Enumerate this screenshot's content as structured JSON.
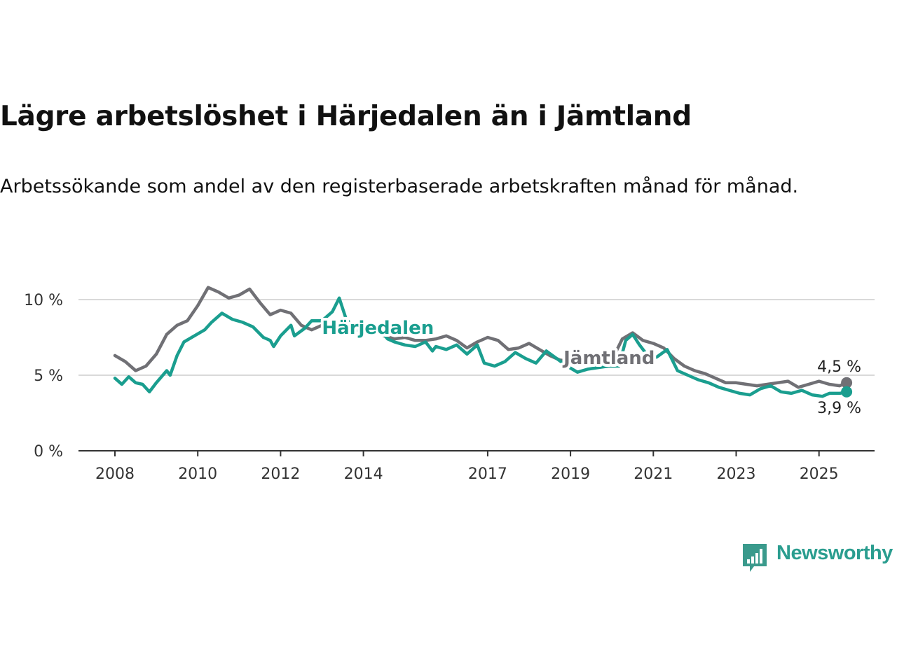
{
  "title": "Lägre arbetslöshet i Härjedalen än i Jämtland",
  "subtitle": "Arbetssökande som andel av den registerbaserade arbetskraften månad för månad.",
  "brand": {
    "name": "Newsworthy",
    "color": "#2a9d8f",
    "icon": "newsworthy-bar-chart-icon"
  },
  "chart_data": {
    "type": "line",
    "x_ticks": [
      "2008",
      "2010",
      "2012",
      "2014",
      "2017",
      "2019",
      "2021",
      "2023",
      "2025"
    ],
    "y_ticks": [
      "0 %",
      "5 %",
      "10 %"
    ],
    "xlim": [
      "2008-01",
      "2025-09"
    ],
    "ylim": [
      0,
      10
    ],
    "grid": true,
    "series": [
      {
        "name": "Jämtland",
        "color": "#707075",
        "end_label": "4,5 %",
        "points": [
          [
            "2008-01",
            6.3
          ],
          [
            "2008-04",
            5.9
          ],
          [
            "2008-07",
            5.3
          ],
          [
            "2008-10",
            5.6
          ],
          [
            "2009-01",
            6.4
          ],
          [
            "2009-04",
            7.7
          ],
          [
            "2009-07",
            8.3
          ],
          [
            "2009-10",
            8.6
          ],
          [
            "2010-01",
            9.6
          ],
          [
            "2010-04",
            10.8
          ],
          [
            "2010-07",
            10.5
          ],
          [
            "2010-10",
            10.1
          ],
          [
            "2011-01",
            10.3
          ],
          [
            "2011-04",
            10.7
          ],
          [
            "2011-07",
            9.8
          ],
          [
            "2011-10",
            9.0
          ],
          [
            "2012-01",
            9.3
          ],
          [
            "2012-04",
            9.1
          ],
          [
            "2012-07",
            8.3
          ],
          [
            "2012-10",
            8.0
          ],
          [
            "2013-01",
            8.3
          ],
          [
            "2013-04",
            8.6
          ],
          [
            "2013-07",
            8.2
          ],
          [
            "2013-10",
            7.9
          ],
          [
            "2014-01",
            8.1
          ],
          [
            "2014-04",
            7.9
          ],
          [
            "2014-07",
            7.6
          ],
          [
            "2014-10",
            7.4
          ],
          [
            "2015-01",
            7.5
          ],
          [
            "2015-04",
            7.3
          ],
          [
            "2015-07",
            7.3
          ],
          [
            "2015-10",
            7.4
          ],
          [
            "2016-01",
            7.6
          ],
          [
            "2016-04",
            7.3
          ],
          [
            "2016-07",
            6.8
          ],
          [
            "2016-10",
            7.2
          ],
          [
            "2017-01",
            7.5
          ],
          [
            "2017-04",
            7.3
          ],
          [
            "2017-07",
            6.7
          ],
          [
            "2017-10",
            6.8
          ],
          [
            "2018-01",
            7.1
          ],
          [
            "2018-04",
            6.7
          ],
          [
            "2018-07",
            6.3
          ],
          [
            "2018-10",
            6.0
          ],
          [
            "2019-01",
            5.9
          ],
          [
            "2019-04",
            5.8
          ],
          [
            "2019-07",
            5.7
          ],
          [
            "2019-10",
            5.9
          ],
          [
            "2020-01",
            6.0
          ],
          [
            "2020-04",
            7.4
          ],
          [
            "2020-07",
            7.8
          ],
          [
            "2020-10",
            7.3
          ],
          [
            "2021-01",
            7.1
          ],
          [
            "2021-04",
            6.8
          ],
          [
            "2021-07",
            6.1
          ],
          [
            "2021-10",
            5.6
          ],
          [
            "2022-01",
            5.3
          ],
          [
            "2022-04",
            5.1
          ],
          [
            "2022-07",
            4.8
          ],
          [
            "2022-10",
            4.5
          ],
          [
            "2023-01",
            4.5
          ],
          [
            "2023-04",
            4.4
          ],
          [
            "2023-07",
            4.3
          ],
          [
            "2023-10",
            4.4
          ],
          [
            "2024-01",
            4.5
          ],
          [
            "2024-04",
            4.6
          ],
          [
            "2024-07",
            4.2
          ],
          [
            "2024-10",
            4.4
          ],
          [
            "2025-01",
            4.6
          ],
          [
            "2025-04",
            4.4
          ],
          [
            "2025-07",
            4.3
          ],
          [
            "2025-09",
            4.5
          ]
        ]
      },
      {
        "name": "Härjedalen",
        "color": "#1a9e8f",
        "end_label": "3,9 %",
        "points": [
          [
            "2008-01",
            4.8
          ],
          [
            "2008-03",
            4.4
          ],
          [
            "2008-05",
            4.9
          ],
          [
            "2008-07",
            4.5
          ],
          [
            "2008-09",
            4.4
          ],
          [
            "2008-11",
            3.9
          ],
          [
            "2009-01",
            4.5
          ],
          [
            "2009-04",
            5.3
          ],
          [
            "2009-05",
            5.0
          ],
          [
            "2009-07",
            6.3
          ],
          [
            "2009-09",
            7.2
          ],
          [
            "2009-12",
            7.6
          ],
          [
            "2010-03",
            8.0
          ],
          [
            "2010-05",
            8.5
          ],
          [
            "2010-08",
            9.1
          ],
          [
            "2010-11",
            8.7
          ],
          [
            "2011-02",
            8.5
          ],
          [
            "2011-05",
            8.2
          ],
          [
            "2011-08",
            7.5
          ],
          [
            "2011-10",
            7.3
          ],
          [
            "2011-11",
            6.9
          ],
          [
            "2012-01",
            7.6
          ],
          [
            "2012-04",
            8.3
          ],
          [
            "2012-05",
            7.6
          ],
          [
            "2012-08",
            8.1
          ],
          [
            "2012-10",
            8.6
          ],
          [
            "2013-01",
            8.6
          ],
          [
            "2013-04",
            9.2
          ],
          [
            "2013-06",
            10.1
          ],
          [
            "2013-08",
            8.7
          ],
          [
            "2013-11",
            8.0
          ],
          [
            "2014-02",
            7.8
          ],
          [
            "2014-05",
            8.2
          ],
          [
            "2014-08",
            7.4
          ],
          [
            "2014-10",
            7.2
          ],
          [
            "2015-01",
            7.0
          ],
          [
            "2015-04",
            6.9
          ],
          [
            "2015-07",
            7.2
          ],
          [
            "2015-09",
            6.6
          ],
          [
            "2015-10",
            6.9
          ],
          [
            "2016-01",
            6.7
          ],
          [
            "2016-04",
            7.0
          ],
          [
            "2016-07",
            6.4
          ],
          [
            "2016-10",
            7.0
          ],
          [
            "2016-12",
            5.8
          ],
          [
            "2017-03",
            5.6
          ],
          [
            "2017-06",
            5.9
          ],
          [
            "2017-09",
            6.5
          ],
          [
            "2017-12",
            6.1
          ],
          [
            "2018-03",
            5.8
          ],
          [
            "2018-06",
            6.6
          ],
          [
            "2018-09",
            6.1
          ],
          [
            "2018-12",
            5.6
          ],
          [
            "2019-03",
            5.2
          ],
          [
            "2019-06",
            5.4
          ],
          [
            "2019-09",
            5.5
          ],
          [
            "2019-12",
            5.6
          ],
          [
            "2020-03",
            5.6
          ],
          [
            "2020-05",
            7.3
          ],
          [
            "2020-07",
            7.7
          ],
          [
            "2020-09",
            7.0
          ],
          [
            "2020-12",
            6.1
          ],
          [
            "2021-02",
            6.2
          ],
          [
            "2021-05",
            6.7
          ],
          [
            "2021-08",
            5.3
          ],
          [
            "2021-11",
            5.0
          ],
          [
            "2022-02",
            4.7
          ],
          [
            "2022-05",
            4.5
          ],
          [
            "2022-08",
            4.2
          ],
          [
            "2022-11",
            4.0
          ],
          [
            "2023-02",
            3.8
          ],
          [
            "2023-05",
            3.7
          ],
          [
            "2023-08",
            4.1
          ],
          [
            "2023-11",
            4.3
          ],
          [
            "2024-02",
            3.9
          ],
          [
            "2024-05",
            3.8
          ],
          [
            "2024-08",
            4.0
          ],
          [
            "2024-11",
            3.7
          ],
          [
            "2025-02",
            3.6
          ],
          [
            "2025-04",
            3.8
          ],
          [
            "2025-07",
            3.8
          ],
          [
            "2025-09",
            3.9
          ]
        ]
      }
    ],
    "annotations": [
      {
        "text": "Härjedalen",
        "series": "Härjedalen",
        "at": [
          "2013-03",
          8.1
        ]
      },
      {
        "text": "Jämtland",
        "series": "Jämtland",
        "at": [
          "2019-01",
          6.1
        ]
      }
    ]
  }
}
